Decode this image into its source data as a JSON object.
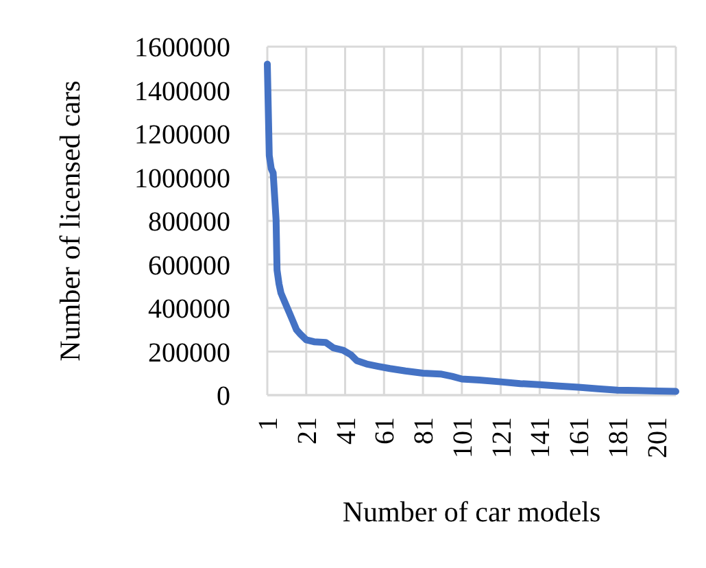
{
  "chart_data": {
    "type": "line",
    "xlabel": "Number of car models",
    "ylabel": "Number of licensed cars",
    "x": [
      1,
      2,
      3,
      4,
      5.5,
      6,
      7,
      8,
      10,
      12,
      14,
      16,
      18,
      21,
      25,
      31,
      35,
      40,
      44,
      47,
      52,
      58,
      64,
      72,
      81,
      90,
      96,
      101,
      110,
      121,
      131,
      141,
      151,
      161,
      171,
      181,
      191,
      201,
      211
    ],
    "series": [
      {
        "color": "#4472c4",
        "values": [
          1520000,
          1100000,
          1040000,
          1020000,
          805000,
          574000,
          511000,
          469000,
          427000,
          385000,
          343000,
          300000,
          280000,
          254000,
          245000,
          242000,
          217000,
          206000,
          185000,
          158000,
          143000,
          132000,
          122000,
          111000,
          101000,
          97000,
          86000,
          74000,
          69000,
          61000,
          53000,
          48000,
          42000,
          36000,
          29000,
          23000,
          21000,
          19000,
          17000
        ]
      }
    ],
    "xlim": [
      1,
      211
    ],
    "xticks": [
      1,
      21,
      41,
      61,
      81,
      101,
      121,
      141,
      161,
      181,
      201
    ],
    "ylim": [
      0,
      1600000
    ],
    "yticks": [
      0,
      200000,
      400000,
      600000,
      800000,
      1000000,
      1200000,
      1400000,
      1600000
    ],
    "grid": true,
    "marker": "none",
    "line_style": "solid"
  }
}
